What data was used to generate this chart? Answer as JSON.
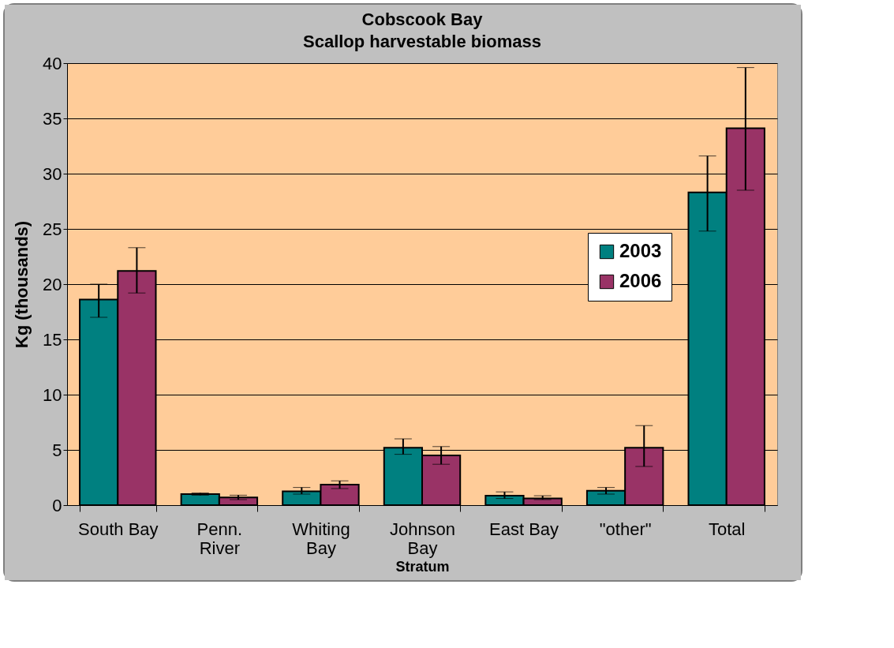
{
  "chart_data": {
    "type": "bar",
    "title": "Cobscook Bay",
    "subtitle": "Scallop harvestable biomass",
    "xlabel": "Stratum",
    "ylabel": "Kg (thousands)",
    "categories": [
      "South Bay",
      "Penn. River",
      "Whiting Bay",
      "Johnson Bay",
      "East Bay",
      "\"other\"",
      "Total"
    ],
    "series": [
      {
        "name": "2003",
        "color": "#008080",
        "values": [
          18.6,
          1.0,
          1.25,
          5.2,
          0.85,
          1.3,
          28.3
        ],
        "errors": [
          [
            17.0,
            20.0
          ],
          [
            0.9,
            1.1
          ],
          [
            1.0,
            1.6
          ],
          [
            4.6,
            6.0
          ],
          [
            0.6,
            1.2
          ],
          [
            1.0,
            1.6
          ],
          [
            24.8,
            31.6
          ]
        ]
      },
      {
        "name": "2006",
        "color": "#993366",
        "values": [
          21.2,
          0.7,
          1.85,
          4.5,
          0.6,
          5.2,
          34.1
        ],
        "errors": [
          [
            19.2,
            23.3
          ],
          [
            0.5,
            0.9
          ],
          [
            1.5,
            2.2
          ],
          [
            3.7,
            5.3
          ],
          [
            0.5,
            0.85
          ],
          [
            3.5,
            7.2
          ],
          [
            28.5,
            39.6
          ]
        ]
      }
    ],
    "ylim": [
      0,
      40
    ],
    "yticks": [
      0,
      5,
      10,
      15,
      20,
      25,
      30,
      35,
      40
    ],
    "grid": "y",
    "legend": "right"
  }
}
